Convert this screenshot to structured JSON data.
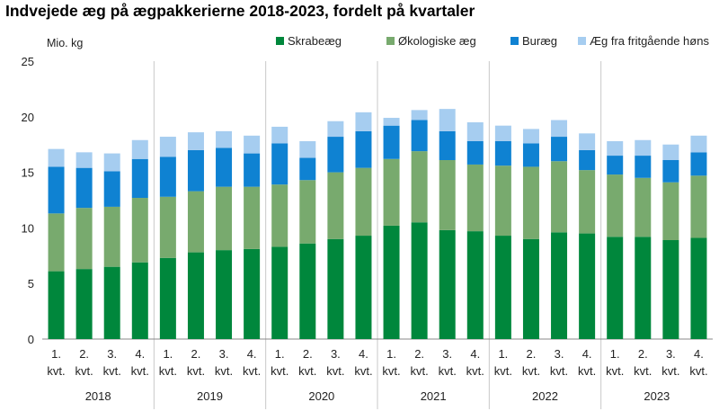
{
  "chart_data": {
    "type": "bar",
    "stacked": true,
    "title": "Indvejede æg på ægpakkerierne 2018-2023, fordelt på kvartaler",
    "unit_label": "Mio. kg",
    "ylim": [
      0,
      25
    ],
    "yticks": [
      0,
      5,
      10,
      15,
      20,
      25
    ],
    "grid": false,
    "legend_position": "top",
    "categories": [
      "1. kvt.",
      "2. kvt.",
      "3. kvt.",
      "4. kvt.",
      "1. kvt.",
      "2. kvt.",
      "3. kvt.",
      "4. kvt.",
      "1. kvt.",
      "2. kvt.",
      "3. kvt.",
      "4. kvt.",
      "1. kvt.",
      "2. kvt.",
      "3. kvt.",
      "4. kvt.",
      "1. kvt.",
      "2. kvt.",
      "3. kvt.",
      "4. kvt.",
      "1. kvt.",
      "2. kvt.",
      "3. kvt.",
      "4. kvt."
    ],
    "years": [
      "2018",
      "2019",
      "2020",
      "2021",
      "2022",
      "2023"
    ],
    "series": [
      {
        "name": "Skrabeæg",
        "color": "#00873c",
        "values": [
          6.1,
          6.3,
          6.5,
          6.9,
          7.3,
          7.8,
          8.0,
          8.1,
          8.3,
          8.6,
          9.0,
          9.3,
          10.2,
          10.5,
          9.8,
          9.7,
          9.3,
          9.0,
          9.6,
          9.5,
          9.2,
          9.2,
          8.9,
          9.1
        ]
      },
      {
        "name": "Økologiske æg",
        "color": "#78aa6e",
        "values": [
          5.2,
          5.5,
          5.4,
          5.8,
          5.5,
          5.5,
          5.7,
          5.6,
          5.6,
          5.7,
          6.0,
          6.1,
          6.0,
          6.4,
          6.3,
          6.0,
          6.3,
          6.5,
          6.4,
          5.7,
          5.6,
          5.3,
          5.2,
          5.6
        ]
      },
      {
        "name": "Buræg",
        "color": "#0f82d2",
        "values": [
          4.2,
          3.6,
          3.2,
          3.5,
          3.6,
          3.7,
          3.5,
          3.0,
          3.7,
          2.0,
          3.2,
          3.3,
          3.0,
          2.8,
          2.6,
          2.1,
          2.2,
          2.1,
          2.2,
          1.8,
          1.7,
          2.0,
          2.0,
          2.1
        ]
      },
      {
        "name": "Æg fra fritgående høns",
        "color": "#a6cdf0",
        "values": [
          1.6,
          1.4,
          1.6,
          1.7,
          1.8,
          1.6,
          1.5,
          1.6,
          1.5,
          1.5,
          1.4,
          1.7,
          0.7,
          0.9,
          2.0,
          1.7,
          1.4,
          1.3,
          1.5,
          1.5,
          1.3,
          1.4,
          1.4,
          1.5
        ]
      }
    ]
  }
}
